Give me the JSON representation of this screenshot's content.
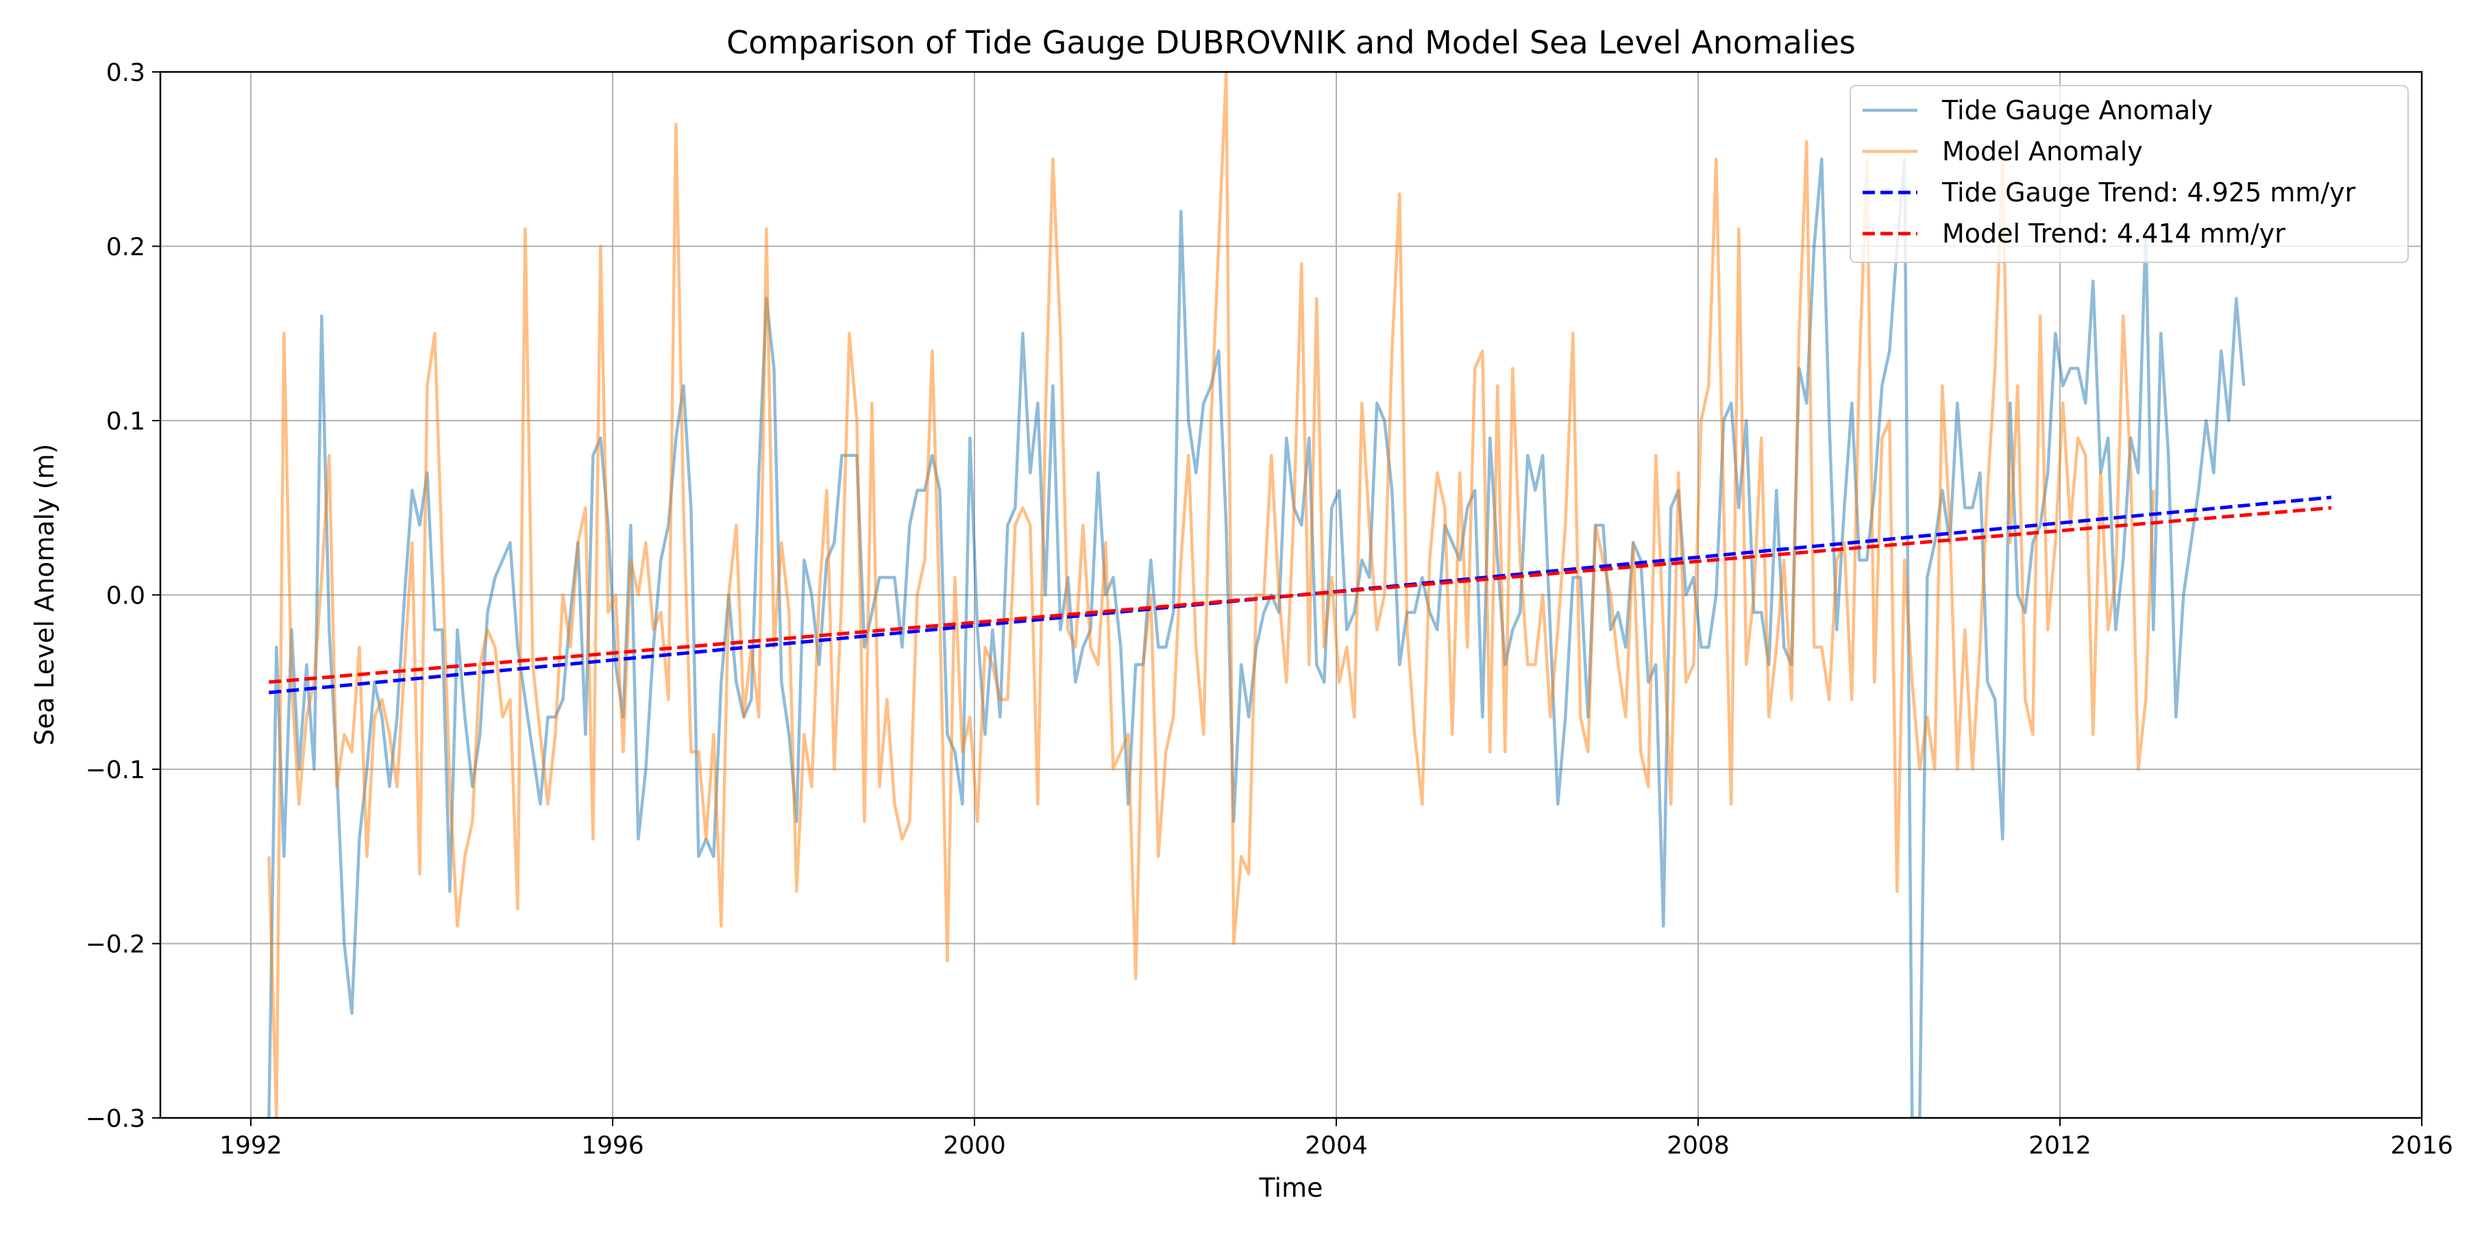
{
  "chart_data": {
    "type": "line",
    "title": "Comparison of Tide Gauge DUBROVNIK and Model Sea Level Anomalies",
    "xlabel": "Time",
    "ylabel": "Sea Level Anomaly (m)",
    "xlim": [
      1991.0,
      2016.0
    ],
    "ylim": [
      -0.3,
      0.3
    ],
    "x_ticks": [
      1992,
      1996,
      2000,
      2004,
      2008,
      2012,
      2016
    ],
    "x_tick_labels": [
      "1992",
      "1996",
      "2000",
      "2004",
      "2008",
      "2012",
      "2016"
    ],
    "y_ticks": [
      -0.3,
      -0.2,
      -0.1,
      0.0,
      0.1,
      0.2,
      0.3
    ],
    "y_tick_labels": [
      "−0.3",
      "−0.2",
      "−0.1",
      "0.0",
      "0.1",
      "0.2",
      "0.3"
    ],
    "grid": true,
    "legend_position": "top-right",
    "x_start": 1992.2,
    "x_step_years": 0.08333,
    "series": [
      {
        "name": "Tide Gauge Anomaly",
        "color": "#1f77b4",
        "opacity": 0.5,
        "style": "solid",
        "values": [
          -0.3,
          -0.03,
          -0.15,
          -0.02,
          -0.1,
          -0.04,
          -0.1,
          0.16,
          -0.02,
          -0.1,
          -0.2,
          -0.24,
          -0.14,
          -0.1,
          -0.05,
          -0.07,
          -0.11,
          -0.07,
          0.0,
          0.06,
          0.04,
          0.07,
          -0.02,
          -0.02,
          -0.17,
          -0.02,
          -0.07,
          -0.11,
          -0.08,
          -0.01,
          0.01,
          0.02,
          0.03,
          -0.03,
          -0.06,
          -0.09,
          -0.12,
          -0.07,
          -0.07,
          -0.06,
          -0.01,
          0.03,
          -0.08,
          0.08,
          0.09,
          0.04,
          -0.04,
          -0.07,
          0.04,
          -0.14,
          -0.1,
          -0.03,
          0.02,
          0.04,
          0.09,
          0.12,
          0.05,
          -0.15,
          -0.14,
          -0.15,
          -0.05,
          0.0,
          -0.05,
          -0.07,
          -0.06,
          0.07,
          0.17,
          0.13,
          -0.05,
          -0.08,
          -0.13,
          0.02,
          0.0,
          -0.04,
          0.02,
          0.03,
          0.08,
          0.08,
          0.08,
          -0.03,
          -0.01,
          0.01,
          0.01,
          0.01,
          -0.03,
          0.04,
          0.06,
          0.06,
          0.08,
          0.06,
          -0.08,
          -0.09,
          -0.12,
          0.09,
          -0.02,
          -0.08,
          -0.02,
          -0.07,
          0.04,
          0.05,
          0.15,
          0.07,
          0.11,
          0.0,
          0.12,
          -0.02,
          0.01,
          -0.05,
          -0.03,
          -0.02,
          0.07,
          0.0,
          0.01,
          -0.03,
          -0.12,
          -0.04,
          -0.04,
          0.02,
          -0.03,
          -0.03,
          -0.01,
          0.22,
          0.1,
          0.07,
          0.11,
          0.12,
          0.14,
          0.04,
          -0.13,
          -0.04,
          -0.07,
          -0.03,
          -0.01,
          0.0,
          -0.01,
          0.09,
          0.05,
          0.04,
          0.09,
          -0.04,
          -0.05,
          0.05,
          0.06,
          -0.02,
          -0.01,
          0.02,
          0.01,
          0.11,
          0.1,
          0.06,
          -0.04,
          -0.01,
          -0.01,
          0.01,
          -0.01,
          -0.02,
          0.04,
          0.03,
          0.02,
          0.05,
          0.06,
          -0.07,
          0.09,
          0.02,
          -0.04,
          -0.02,
          -0.01,
          0.08,
          0.06,
          0.08,
          -0.02,
          -0.12,
          -0.07,
          0.01,
          0.01,
          -0.07,
          0.04,
          0.04,
          -0.02,
          -0.01,
          -0.03,
          0.03,
          0.02,
          -0.05,
          -0.04,
          -0.19,
          0.05,
          0.06,
          0.0,
          0.01,
          -0.03,
          -0.03,
          0.0,
          0.1,
          0.11,
          0.05,
          0.1,
          -0.01,
          -0.01,
          -0.04,
          0.06,
          -0.03,
          -0.04,
          0.13,
          0.11,
          0.2,
          0.25,
          0.1,
          -0.02,
          0.05,
          0.11,
          0.02,
          0.02,
          0.06,
          0.12,
          0.14,
          0.2,
          0.25,
          -0.3,
          -0.3,
          0.01,
          0.03,
          0.06,
          0.03,
          0.11,
          0.05,
          0.05,
          0.07,
          -0.05,
          -0.06,
          -0.14,
          0.11,
          0.0,
          -0.01,
          0.03,
          0.04,
          0.07,
          0.15,
          0.12,
          0.13,
          0.13,
          0.11,
          0.18,
          0.07,
          0.09,
          -0.02,
          0.02,
          0.09,
          0.07,
          0.21,
          -0.02,
          0.15,
          0.08,
          -0.07,
          0.0,
          0.03,
          0.06,
          0.1,
          0.07,
          0.14,
          0.1,
          0.17,
          0.12
        ]
      },
      {
        "name": "Model Anomaly",
        "color": "#ff7f0e",
        "opacity": 0.5,
        "style": "solid",
        "values": [
          -0.15,
          -0.3,
          0.15,
          -0.05,
          -0.12,
          -0.07,
          -0.05,
          0.01,
          0.08,
          -0.11,
          -0.08,
          -0.09,
          -0.03,
          -0.15,
          -0.07,
          -0.06,
          -0.08,
          -0.11,
          -0.04,
          0.03,
          -0.16,
          0.12,
          0.15,
          0.02,
          -0.11,
          -0.19,
          -0.15,
          -0.13,
          -0.04,
          -0.02,
          -0.03,
          -0.07,
          -0.06,
          -0.18,
          0.21,
          -0.04,
          -0.08,
          -0.12,
          -0.08,
          0.0,
          -0.03,
          0.03,
          0.05,
          -0.14,
          0.2,
          -0.01,
          0.0,
          -0.09,
          0.02,
          0.0,
          0.03,
          -0.02,
          -0.01,
          -0.06,
          0.27,
          0.05,
          -0.09,
          -0.09,
          -0.14,
          -0.08,
          -0.19,
          0.0,
          0.04,
          -0.07,
          -0.03,
          -0.07,
          0.21,
          -0.03,
          0.03,
          -0.01,
          -0.17,
          -0.08,
          -0.11,
          0.0,
          0.06,
          -0.1,
          0.0,
          0.15,
          0.1,
          -0.13,
          0.11,
          -0.11,
          -0.06,
          -0.12,
          -0.14,
          -0.13,
          0.0,
          0.02,
          0.14,
          -0.01,
          -0.21,
          0.01,
          -0.09,
          -0.07,
          -0.13,
          -0.03,
          -0.04,
          -0.06,
          -0.06,
          0.04,
          0.05,
          0.04,
          -0.12,
          0.1,
          0.25,
          0.15,
          -0.02,
          -0.03,
          0.04,
          -0.03,
          -0.04,
          0.03,
          -0.1,
          -0.09,
          -0.08,
          -0.22,
          -0.04,
          0.0,
          -0.15,
          -0.09,
          -0.07,
          0.02,
          0.08,
          -0.03,
          -0.08,
          0.1,
          0.2,
          0.3,
          -0.2,
          -0.15,
          -0.16,
          0.0,
          0.0,
          0.08,
          0.0,
          -0.05,
          0.05,
          0.19,
          -0.04,
          0.17,
          -0.03,
          0.01,
          -0.05,
          -0.03,
          -0.07,
          0.11,
          0.04,
          -0.02,
          0.0,
          0.14,
          0.23,
          -0.02,
          -0.08,
          -0.12,
          0.02,
          0.07,
          0.05,
          -0.08,
          0.07,
          -0.03,
          0.13,
          0.14,
          -0.09,
          0.12,
          -0.09,
          0.13,
          0.02,
          -0.04,
          -0.04,
          0.0,
          -0.07,
          -0.02,
          0.04,
          0.15,
          -0.07,
          -0.09,
          0.04,
          0.02,
          0.0,
          -0.04,
          -0.07,
          0.03,
          -0.09,
          -0.11,
          0.08,
          -0.02,
          -0.12,
          0.07,
          -0.05,
          -0.04,
          0.1,
          0.12,
          0.25,
          0.05,
          -0.12,
          0.21,
          -0.04,
          0.0,
          0.09,
          -0.07,
          -0.03,
          0.02,
          -0.06,
          0.15,
          0.26,
          -0.03,
          -0.03,
          -0.06,
          0.02,
          0.03,
          -0.06,
          0.13,
          0.25,
          -0.05,
          0.09,
          0.1,
          -0.17,
          0.02,
          -0.05,
          -0.1,
          -0.07,
          -0.1,
          0.12,
          0.04,
          -0.1,
          -0.02,
          -0.1,
          -0.03,
          0.06,
          0.13,
          0.25,
          0.03,
          0.12,
          -0.06,
          -0.08,
          0.16,
          -0.02,
          0.03,
          0.11,
          0.04,
          0.09,
          0.08,
          -0.08,
          0.07,
          -0.02,
          0.01,
          0.16,
          0.07,
          -0.1,
          -0.06,
          0.06
        ]
      },
      {
        "name": "Tide Gauge Trend: 4.925 mm/yr",
        "color": "#0000ff",
        "style": "dashed",
        "x": [
          1992.2,
          2015.0
        ],
        "values": [
          -0.056,
          0.056
        ]
      },
      {
        "name": "Model Trend: 4.414 mm/yr",
        "color": "#ff0000",
        "style": "dashed",
        "x": [
          1992.2,
          2015.0
        ],
        "values": [
          -0.05,
          0.05
        ]
      }
    ]
  }
}
